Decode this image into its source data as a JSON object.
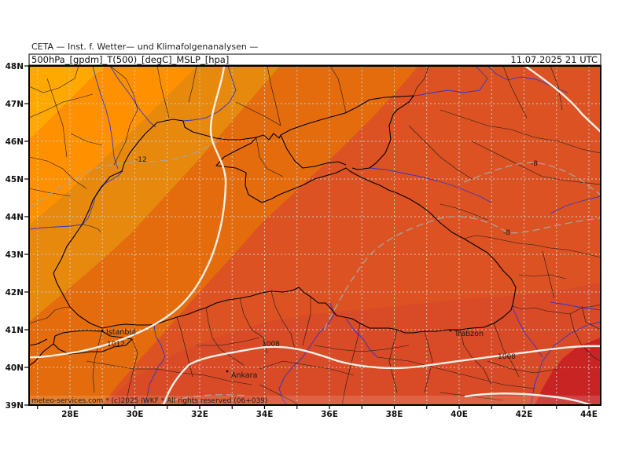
{
  "header": {
    "institute": "CETA — Inst. f. Wetter— und Klimafolgenanalysen —",
    "product": "500hPa_[gpdm]_T(500)_[degC]_MSLP_[hpa]",
    "valid_time": "11.07.2025 21 UTC"
  },
  "axes": {
    "lat_labels": [
      "48N",
      "47N",
      "46N",
      "45N",
      "44N",
      "43N",
      "42N",
      "41N",
      "40N",
      "39N"
    ],
    "lon_labels": [
      "28E",
      "30E",
      "32E",
      "34E",
      "36E",
      "38E",
      "40E",
      "42E",
      "44E"
    ]
  },
  "cities": [
    {
      "name": "Istanbul"
    },
    {
      "name": "Ankara"
    },
    {
      "name": "Trabzon"
    }
  ],
  "isobar_labels": [
    "1012",
    "1008",
    "1008"
  ],
  "isotherm_labels": [
    "-12",
    "-8",
    "-8"
  ],
  "copyright": "meteo-services.com * (c)2025 IWKF * All rights reserved (06+039)",
  "colors": {
    "temperature_fill": {
      "coldest": "#FFA900",
      "cold": "#FF9100",
      "colder": "#E6890D",
      "cool": "#E46C0C",
      "mild": "#DD5222",
      "warm": "#D94A27",
      "warmest": "#C92424"
    },
    "isobar": "#F6F0E8",
    "isotherm": "#A9A49C",
    "coastline": "#000000",
    "border": "#1A1A1A",
    "river": "#3535C8",
    "grid": "#CBCBCB",
    "frame": "#000000"
  }
}
